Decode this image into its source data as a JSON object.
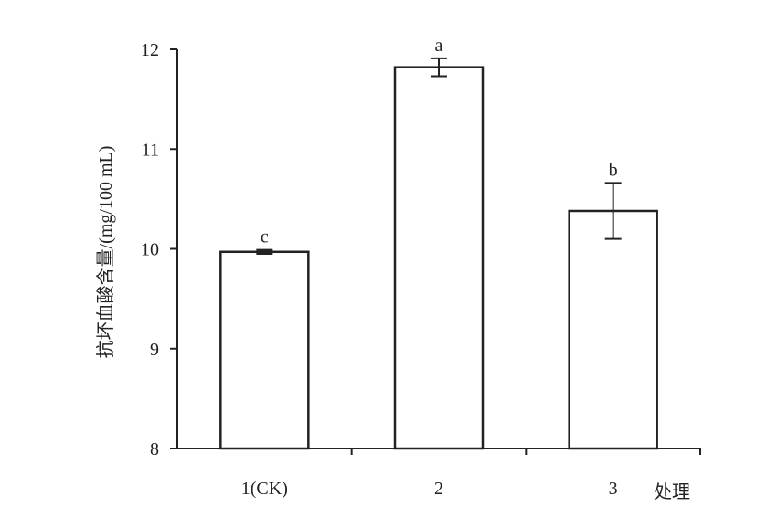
{
  "chart_data": {
    "type": "bar",
    "categories": [
      "1(CK)",
      "2",
      "3"
    ],
    "values": [
      9.97,
      11.82,
      10.38
    ],
    "errors": [
      0.02,
      0.09,
      0.28
    ],
    "significance": [
      "c",
      "a",
      "b"
    ],
    "title": "",
    "xlabel": "处理",
    "ylabel": "抗坏血酸含量/(mg/100 mL)",
    "ylim": [
      8,
      12
    ],
    "yticks": [
      "8",
      "9",
      "10",
      "11",
      "12"
    ],
    "grid": false,
    "legend": "none",
    "colors": {
      "bar_fill": "#ffffff",
      "bar_stroke": "#222222",
      "axis": "#222222"
    }
  }
}
